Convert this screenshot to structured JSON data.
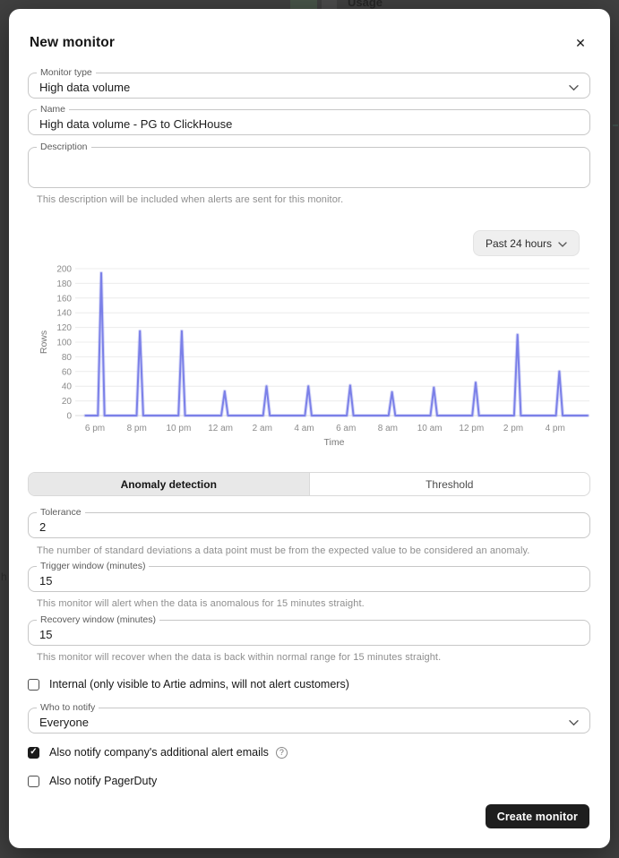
{
  "background": {
    "usage_label": "Usage",
    "partial_text_left": "h"
  },
  "icons": {
    "close": "✕",
    "check": "✓",
    "help": "?"
  },
  "modal": {
    "title": "New monitor",
    "monitor_type": {
      "label": "Monitor type",
      "value": "High data volume"
    },
    "name": {
      "label": "Name",
      "value": "High data volume - PG to ClickHouse"
    },
    "description": {
      "label": "Description",
      "value": "",
      "helper": "This description will be included when alerts are sent for this monitor."
    },
    "time_range_button": {
      "label": "Past 24 hours"
    },
    "tabs": [
      {
        "label": "Anomaly detection",
        "active": true
      },
      {
        "label": "Threshold",
        "active": false
      }
    ],
    "tolerance": {
      "label": "Tolerance",
      "value": "2",
      "helper": "The number of standard deviations a data point must be from the expected value to be considered an anomaly."
    },
    "trigger_window": {
      "label": "Trigger window (minutes)",
      "value": "15",
      "helper": "This monitor will alert when the data is anomalous for 15 minutes straight."
    },
    "recovery_window": {
      "label": "Recovery window (minutes)",
      "value": "15",
      "helper": "This monitor will recover when the data is back within normal range for 15 minutes straight."
    },
    "checkboxes": [
      {
        "label": "Internal (only visible to Artie admins, will not alert customers)",
        "checked": false
      },
      {
        "label": "Also notify company's additional alert emails",
        "checked": true,
        "has_help_icon": true
      },
      {
        "label": "Also notify PagerDuty",
        "checked": false
      }
    ],
    "who_to_notify": {
      "label": "Who to notify",
      "value": "Everyone"
    },
    "create_button": "Create monitor"
  },
  "chart_data": {
    "type": "line",
    "title": "",
    "xlabel": "Time",
    "ylabel": "Rows",
    "ylim": [
      0,
      200
    ],
    "y_ticks": [
      0,
      20,
      40,
      60,
      80,
      100,
      120,
      140,
      160,
      180,
      200
    ],
    "x_tick_labels": [
      "6 pm",
      "8 pm",
      "10 pm",
      "12 am",
      "2 am",
      "4 am",
      "6 am",
      "8 am",
      "10 am",
      "12 pm",
      "2 pm",
      "4 pm"
    ],
    "x_tick_interval_hours": 2,
    "grid": "horizontal",
    "legend_position": "none",
    "line_color": "#7b80e8",
    "series": [
      {
        "name": "Rows",
        "description": "flat at 0 with narrow periodic spikes roughly every 2 hours",
        "spikes": [
          {
            "hours_after_6pm": 0.3,
            "value": 194
          },
          {
            "hours_after_6pm": 2.15,
            "value": 115
          },
          {
            "hours_after_6pm": 4.15,
            "value": 115
          },
          {
            "hours_after_6pm": 6.2,
            "value": 33
          },
          {
            "hours_after_6pm": 8.2,
            "value": 40
          },
          {
            "hours_after_6pm": 10.2,
            "value": 40
          },
          {
            "hours_after_6pm": 12.2,
            "value": 41
          },
          {
            "hours_after_6pm": 14.2,
            "value": 32
          },
          {
            "hours_after_6pm": 16.2,
            "value": 38
          },
          {
            "hours_after_6pm": 18.2,
            "value": 45
          },
          {
            "hours_after_6pm": 20.2,
            "value": 110
          },
          {
            "hours_after_6pm": 22.2,
            "value": 60
          }
        ],
        "baseline_value": 0
      }
    ]
  }
}
